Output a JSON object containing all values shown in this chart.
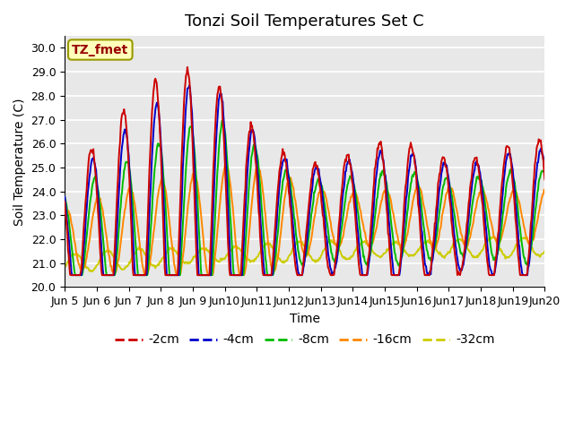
{
  "title": "Tonzi Soil Temperatures Set C",
  "xlabel": "Time",
  "ylabel": "Soil Temperature (C)",
  "ylim": [
    20.0,
    30.5
  ],
  "yticks": [
    20.0,
    21.0,
    22.0,
    23.0,
    24.0,
    25.0,
    26.0,
    27.0,
    28.0,
    29.0,
    30.0
  ],
  "colors": {
    "-2cm": "#cc0000",
    "-4cm": "#0000cc",
    "-8cm": "#00bb00",
    "-16cm": "#ff8800",
    "-32cm": "#cccc00"
  },
  "annotation_text": "TZ_fmet",
  "annotation_color": "#990000",
  "annotation_bg": "#ffffbb",
  "background_color": "#e8e8e8",
  "grid_color": "#ffffff",
  "title_fontsize": 13,
  "axis_fontsize": 10,
  "tick_fontsize": 9,
  "legend_fontsize": 10
}
